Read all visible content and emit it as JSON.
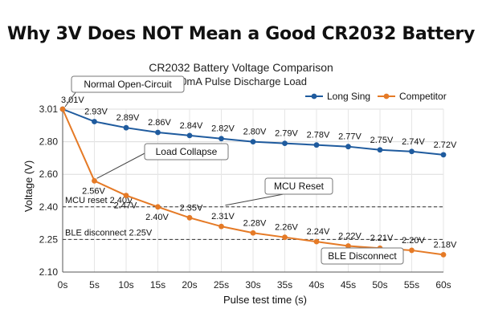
{
  "headline": "Why 3V Does NOT Mean a Good CR2032 Battery",
  "chart_data": {
    "type": "line",
    "title": "CR2032 Battery Voltage Comparison",
    "subtitle": "20mA Pulse Discharge Load",
    "xlabel": "Pulse test time (s)",
    "ylabel": "Voltage (V)",
    "x": [
      0,
      5,
      10,
      15,
      20,
      25,
      30,
      35,
      40,
      45,
      50,
      55,
      60
    ],
    "x_tick_labels": [
      "0s",
      "5s",
      "10s",
      "15s",
      "20s",
      "25s",
      "30s",
      "35s",
      "40s",
      "45s",
      "50s",
      "55s",
      "60s"
    ],
    "y_ticks": [
      2.1,
      2.25,
      2.4,
      2.6,
      2.8,
      3.01
    ],
    "y_tick_labels": [
      "2.10",
      "2.25",
      "2.40",
      "2.60",
      "2.80",
      "3.01"
    ],
    "ylim": [
      2.1,
      3.01
    ],
    "legend_position": "top-right",
    "grid": true,
    "series": [
      {
        "name": "Long Sing",
        "color": "#1f5b9e",
        "values": [
          3.01,
          2.93,
          2.89,
          2.86,
          2.84,
          2.82,
          2.8,
          2.79,
          2.78,
          2.77,
          2.75,
          2.74,
          2.72
        ],
        "labels": [
          "3.01V",
          "2.93V",
          "2.89V",
          "2.86V",
          "2.84V",
          "2.82V",
          "2.80V",
          "2.79V",
          "2.78V",
          "2.77V",
          "2.75V",
          "2.74V",
          "2.72V"
        ]
      },
      {
        "name": "Competitor",
        "color": "#e57a26",
        "values": [
          3.01,
          2.56,
          2.47,
          2.4,
          2.35,
          2.31,
          2.28,
          2.26,
          2.24,
          2.22,
          2.21,
          2.2,
          2.18
        ],
        "labels": [
          "",
          "2.56V",
          "2.47V",
          "2.40V",
          "2.35V",
          "2.31V",
          "2.28V",
          "2.26V",
          "2.24V",
          "2.22V",
          "2.21V",
          "2.20V",
          "2.18V"
        ]
      }
    ],
    "reference_lines": [
      {
        "label": "MCU reset 2.40V",
        "value": 2.4
      },
      {
        "label": "BLE disconnect 2.25V",
        "value": 2.25
      }
    ],
    "annotations": [
      {
        "text": "Normal Open-Circuit"
      },
      {
        "text": "Load Collapse"
      },
      {
        "text": "MCU Reset"
      },
      {
        "text": "BLE Disconnect"
      }
    ]
  }
}
